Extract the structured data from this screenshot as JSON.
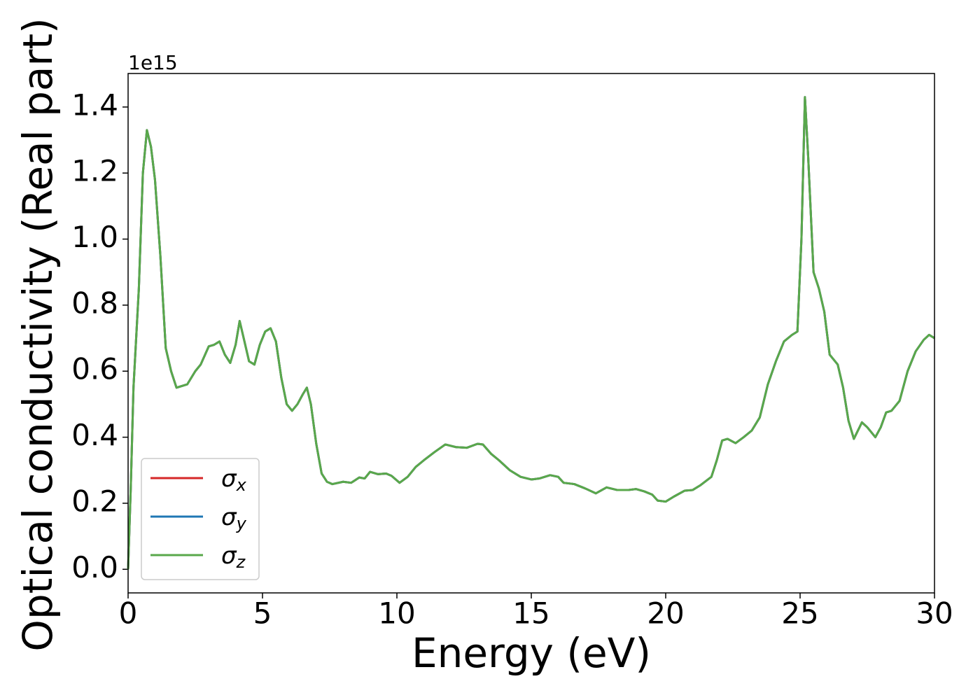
{
  "chart_data": {
    "type": "line",
    "x_label": "Energy (eV)",
    "y_label": "Optical conductivity (Real part)",
    "y_offset_label": "1e15",
    "x": [
      0,
      0.1,
      0.2,
      0.4,
      0.55,
      0.7,
      0.85,
      1.0,
      1.2,
      1.4,
      1.6,
      1.8,
      2.0,
      2.2,
      2.5,
      2.7,
      3.0,
      3.2,
      3.4,
      3.6,
      3.8,
      4.0,
      4.15,
      4.3,
      4.5,
      4.7,
      4.9,
      5.1,
      5.3,
      5.5,
      5.7,
      5.9,
      6.1,
      6.3,
      6.5,
      6.65,
      6.8,
      7.0,
      7.2,
      7.4,
      7.6,
      8.0,
      8.3,
      8.6,
      8.8,
      9.0,
      9.3,
      9.6,
      9.8,
      10.1,
      10.4,
      10.7,
      11.0,
      11.4,
      11.8,
      12.2,
      12.6,
      13.0,
      13.2,
      13.5,
      13.8,
      14.2,
      14.6,
      15.0,
      15.3,
      15.7,
      16.0,
      16.2,
      16.6,
      17.0,
      17.4,
      17.8,
      18.2,
      18.6,
      18.9,
      19.2,
      19.5,
      19.7,
      20.0,
      20.3,
      20.7,
      21.0,
      21.3,
      21.7,
      21.9,
      22.1,
      22.3,
      22.6,
      22.9,
      23.2,
      23.5,
      23.8,
      24.1,
      24.4,
      24.7,
      24.9,
      25.05,
      25.18,
      25.3,
      25.5,
      25.7,
      25.9,
      26.1,
      26.4,
      26.6,
      26.8,
      27.0,
      27.3,
      27.5,
      27.8,
      28.0,
      28.2,
      28.4,
      28.7,
      29.0,
      29.3,
      29.6,
      29.8,
      30.0
    ],
    "series": [
      {
        "name": "σx",
        "color": "#d62728",
        "values": [
          0,
          0.25,
          0.55,
          0.85,
          1.2,
          1.33,
          1.28,
          1.18,
          0.95,
          0.67,
          0.6,
          0.55,
          0.555,
          0.56,
          0.6,
          0.62,
          0.675,
          0.68,
          0.69,
          0.65,
          0.625,
          0.68,
          0.752,
          0.7,
          0.63,
          0.62,
          0.68,
          0.72,
          0.73,
          0.69,
          0.58,
          0.5,
          0.48,
          0.5,
          0.53,
          0.55,
          0.5,
          0.38,
          0.29,
          0.265,
          0.258,
          0.265,
          0.262,
          0.278,
          0.275,
          0.295,
          0.288,
          0.29,
          0.283,
          0.262,
          0.28,
          0.31,
          0.33,
          0.355,
          0.378,
          0.37,
          0.368,
          0.38,
          0.378,
          0.35,
          0.33,
          0.3,
          0.28,
          0.272,
          0.275,
          0.285,
          0.28,
          0.262,
          0.258,
          0.245,
          0.23,
          0.248,
          0.24,
          0.24,
          0.243,
          0.236,
          0.226,
          0.208,
          0.205,
          0.22,
          0.238,
          0.24,
          0.255,
          0.28,
          0.33,
          0.39,
          0.395,
          0.382,
          0.4,
          0.42,
          0.46,
          0.56,
          0.63,
          0.69,
          0.71,
          0.72,
          1.0,
          1.43,
          1.25,
          0.9,
          0.85,
          0.78,
          0.65,
          0.62,
          0.55,
          0.45,
          0.395,
          0.445,
          0.43,
          0.4,
          0.43,
          0.475,
          0.48,
          0.51,
          0.6,
          0.66,
          0.695,
          0.71,
          0.7
        ]
      },
      {
        "name": "σy",
        "color": "#1f77b4",
        "values": [
          0,
          0.25,
          0.55,
          0.85,
          1.2,
          1.33,
          1.28,
          1.18,
          0.95,
          0.67,
          0.6,
          0.55,
          0.555,
          0.56,
          0.6,
          0.62,
          0.675,
          0.68,
          0.69,
          0.65,
          0.625,
          0.68,
          0.752,
          0.7,
          0.63,
          0.62,
          0.68,
          0.72,
          0.73,
          0.69,
          0.58,
          0.5,
          0.48,
          0.5,
          0.53,
          0.55,
          0.5,
          0.38,
          0.29,
          0.265,
          0.258,
          0.265,
          0.262,
          0.278,
          0.275,
          0.295,
          0.288,
          0.29,
          0.283,
          0.262,
          0.28,
          0.31,
          0.33,
          0.355,
          0.378,
          0.37,
          0.368,
          0.38,
          0.378,
          0.35,
          0.33,
          0.3,
          0.28,
          0.272,
          0.275,
          0.285,
          0.28,
          0.262,
          0.258,
          0.245,
          0.23,
          0.248,
          0.24,
          0.24,
          0.243,
          0.236,
          0.226,
          0.208,
          0.205,
          0.22,
          0.238,
          0.24,
          0.255,
          0.28,
          0.33,
          0.39,
          0.395,
          0.382,
          0.4,
          0.42,
          0.46,
          0.56,
          0.63,
          0.69,
          0.71,
          0.72,
          1.0,
          1.43,
          1.25,
          0.9,
          0.85,
          0.78,
          0.65,
          0.62,
          0.55,
          0.45,
          0.395,
          0.445,
          0.43,
          0.4,
          0.43,
          0.475,
          0.48,
          0.51,
          0.6,
          0.66,
          0.695,
          0.71,
          0.7
        ]
      },
      {
        "name": "σz",
        "color": "#59a84b",
        "values": [
          0,
          0.25,
          0.55,
          0.85,
          1.2,
          1.33,
          1.28,
          1.18,
          0.95,
          0.67,
          0.6,
          0.55,
          0.555,
          0.56,
          0.6,
          0.62,
          0.675,
          0.68,
          0.69,
          0.65,
          0.625,
          0.68,
          0.752,
          0.7,
          0.63,
          0.62,
          0.68,
          0.72,
          0.73,
          0.69,
          0.58,
          0.5,
          0.48,
          0.5,
          0.53,
          0.55,
          0.5,
          0.38,
          0.29,
          0.265,
          0.258,
          0.265,
          0.262,
          0.278,
          0.275,
          0.295,
          0.288,
          0.29,
          0.283,
          0.262,
          0.28,
          0.31,
          0.33,
          0.355,
          0.378,
          0.37,
          0.368,
          0.38,
          0.378,
          0.35,
          0.33,
          0.3,
          0.28,
          0.272,
          0.275,
          0.285,
          0.28,
          0.262,
          0.258,
          0.245,
          0.23,
          0.248,
          0.24,
          0.24,
          0.243,
          0.236,
          0.226,
          0.208,
          0.205,
          0.22,
          0.238,
          0.24,
          0.255,
          0.28,
          0.33,
          0.39,
          0.395,
          0.382,
          0.4,
          0.42,
          0.46,
          0.56,
          0.63,
          0.69,
          0.71,
          0.72,
          1.0,
          1.43,
          1.25,
          0.9,
          0.85,
          0.78,
          0.65,
          0.62,
          0.55,
          0.45,
          0.395,
          0.445,
          0.43,
          0.4,
          0.43,
          0.475,
          0.48,
          0.51,
          0.6,
          0.66,
          0.695,
          0.71,
          0.7
        ]
      }
    ],
    "xlim": [
      0,
      30
    ],
    "xticks": [
      0,
      5,
      10,
      15,
      20,
      25,
      30
    ],
    "ylim": [
      -0.0715,
      1.5015
    ],
    "yticks": [
      {
        "value": 0,
        "label": "0.0"
      },
      0.2,
      0.4,
      0.6,
      0.8,
      {
        "value": 1.0,
        "label": "1.0"
      },
      1.2,
      1.4
    ],
    "grid": false,
    "legend": "lower left"
  }
}
